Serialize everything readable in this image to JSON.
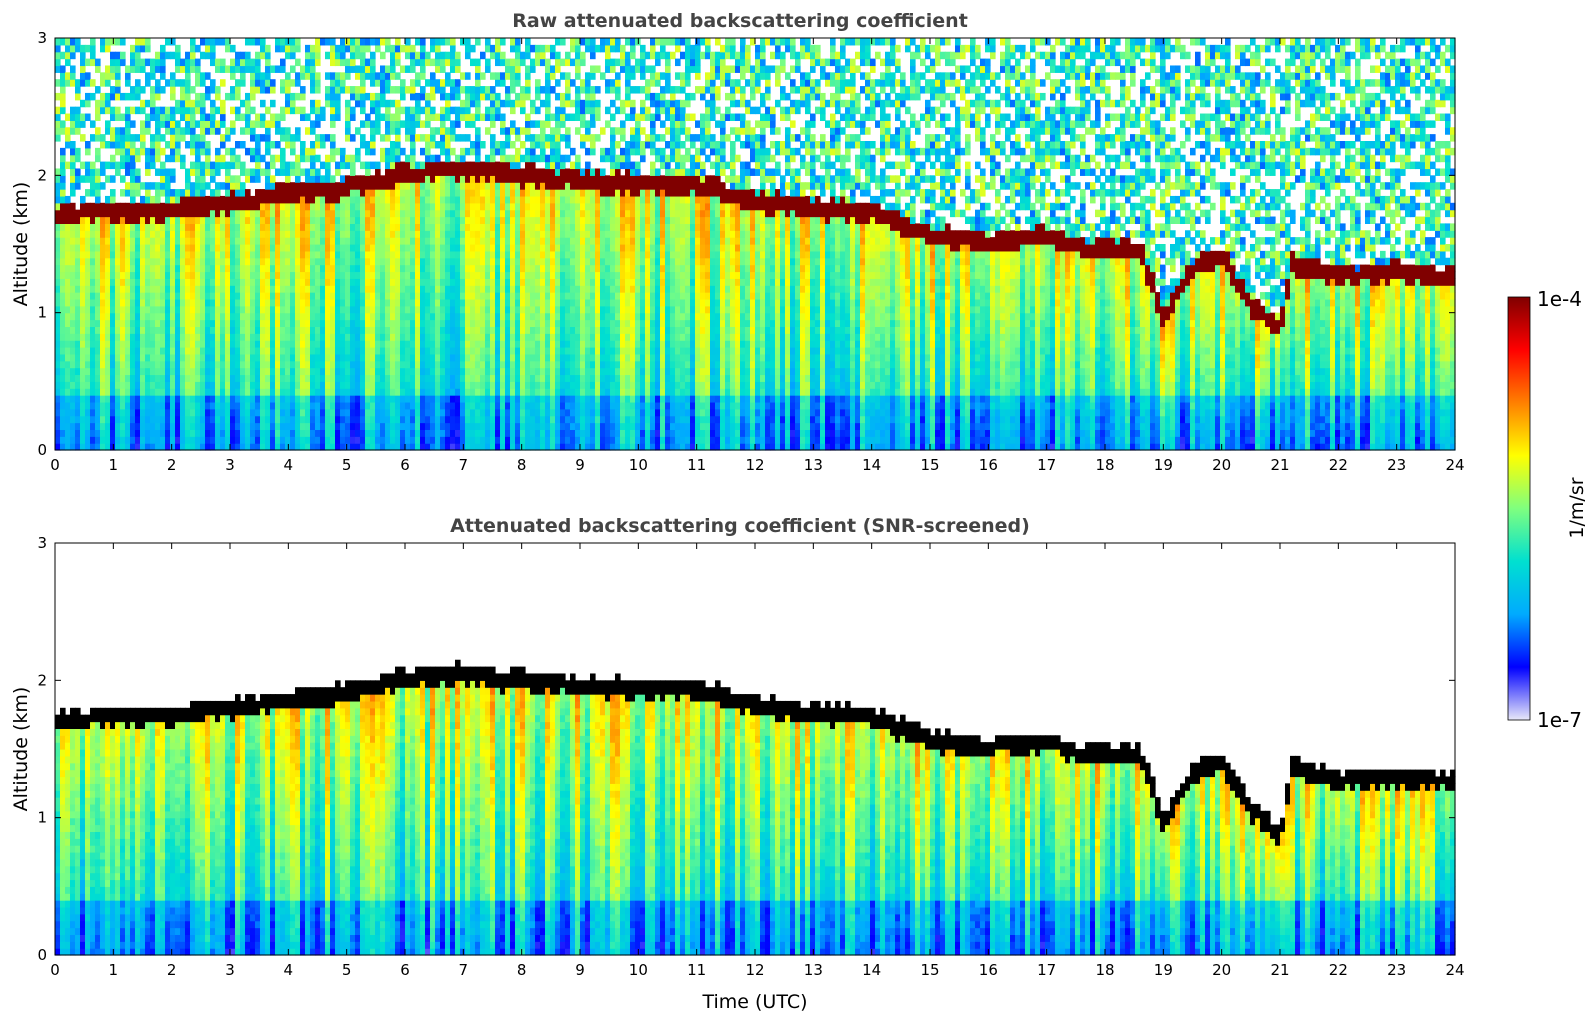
{
  "chart_data": [
    {
      "type": "heatmap",
      "title": "Raw attenuated backscattering coefficient",
      "xlabel": "",
      "ylabel": "Altitude (km)",
      "xlim": [
        0,
        24
      ],
      "ylim": [
        0,
        3
      ],
      "xticks": [
        "0",
        "1",
        "2",
        "3",
        "4",
        "5",
        "6",
        "7",
        "8",
        "9",
        "10",
        "11",
        "12",
        "13",
        "14",
        "15",
        "16",
        "17",
        "18",
        "19",
        "20",
        "21",
        "22",
        "23",
        "24"
      ],
      "yticks": [
        "0",
        "1",
        "2",
        "3"
      ],
      "screened": false,
      "cloud_base_km": [
        {
          "t": 0,
          "z": 1.7
        },
        {
          "t": 1,
          "z": 1.72
        },
        {
          "t": 2,
          "z": 1.73
        },
        {
          "t": 3,
          "z": 1.78
        },
        {
          "t": 4,
          "z": 1.85
        },
        {
          "t": 5,
          "z": 1.9
        },
        {
          "t": 6,
          "z": 2.0
        },
        {
          "t": 7,
          "z": 2.03
        },
        {
          "t": 8,
          "z": 1.98
        },
        {
          "t": 9,
          "z": 1.95
        },
        {
          "t": 10,
          "z": 1.92
        },
        {
          "t": 11,
          "z": 1.92
        },
        {
          "t": 12,
          "z": 1.8
        },
        {
          "t": 13,
          "z": 1.75
        },
        {
          "t": 14,
          "z": 1.72
        },
        {
          "t": 15,
          "z": 1.55
        },
        {
          "t": 16,
          "z": 1.5
        },
        {
          "t": 17,
          "z": 1.55
        },
        {
          "t": 17.6,
          "z": 1.45
        },
        {
          "t": 18,
          "z": 1.45
        },
        {
          "t": 18.6,
          "z": 1.45
        },
        {
          "t": 19,
          "z": 0.95
        },
        {
          "t": 19.5,
          "z": 1.3
        },
        {
          "t": 20,
          "z": 1.4
        },
        {
          "t": 20.5,
          "z": 1.05
        },
        {
          "t": 21,
          "z": 0.85
        },
        {
          "t": 21.2,
          "z": 1.35
        },
        {
          "t": 22,
          "z": 1.25
        },
        {
          "t": 23,
          "z": 1.28
        },
        {
          "t": 24,
          "z": 1.25
        }
      ]
    },
    {
      "type": "heatmap",
      "title": "Attenuated backscattering coefficient (SNR-screened)",
      "xlabel": "Time (UTC)",
      "ylabel": "Altitude (km)",
      "xlim": [
        0,
        24
      ],
      "ylim": [
        0,
        3
      ],
      "xticks": [
        "0",
        "1",
        "2",
        "3",
        "4",
        "5",
        "6",
        "7",
        "8",
        "9",
        "10",
        "11",
        "12",
        "13",
        "14",
        "15",
        "16",
        "17",
        "18",
        "19",
        "20",
        "21",
        "22",
        "23",
        "24"
      ],
      "yticks": [
        "0",
        "1",
        "2",
        "3"
      ],
      "screened": true,
      "cloud_base_km": [
        {
          "t": 0,
          "z": 1.7
        },
        {
          "t": 1,
          "z": 1.72
        },
        {
          "t": 2,
          "z": 1.73
        },
        {
          "t": 3,
          "z": 1.78
        },
        {
          "t": 4,
          "z": 1.85
        },
        {
          "t": 5,
          "z": 1.9
        },
        {
          "t": 6,
          "z": 2.0
        },
        {
          "t": 7,
          "z": 2.03
        },
        {
          "t": 8,
          "z": 1.98
        },
        {
          "t": 9,
          "z": 1.95
        },
        {
          "t": 10,
          "z": 1.92
        },
        {
          "t": 11,
          "z": 1.92
        },
        {
          "t": 12,
          "z": 1.8
        },
        {
          "t": 13,
          "z": 1.75
        },
        {
          "t": 14,
          "z": 1.72
        },
        {
          "t": 15,
          "z": 1.55
        },
        {
          "t": 16,
          "z": 1.5
        },
        {
          "t": 17,
          "z": 1.55
        },
        {
          "t": 17.6,
          "z": 1.45
        },
        {
          "t": 18,
          "z": 1.45
        },
        {
          "t": 18.6,
          "z": 1.45
        },
        {
          "t": 19,
          "z": 0.95
        },
        {
          "t": 19.5,
          "z": 1.3
        },
        {
          "t": 20,
          "z": 1.4
        },
        {
          "t": 20.5,
          "z": 1.05
        },
        {
          "t": 21,
          "z": 0.85
        },
        {
          "t": 21.2,
          "z": 1.35
        },
        {
          "t": 22,
          "z": 1.25
        },
        {
          "t": 23,
          "z": 1.28
        },
        {
          "t": 24,
          "z": 1.25
        }
      ]
    }
  ],
  "colorbar": {
    "label": "1/m/sr",
    "max_label": "1e-4",
    "min_label": "1e-7",
    "colormap": "jet",
    "colors": [
      "#e8e8f8",
      "#0000ff",
      "#00aaff",
      "#00e0d0",
      "#7fff7f",
      "#ffff00",
      "#ff8000",
      "#ff0000",
      "#800000"
    ]
  }
}
